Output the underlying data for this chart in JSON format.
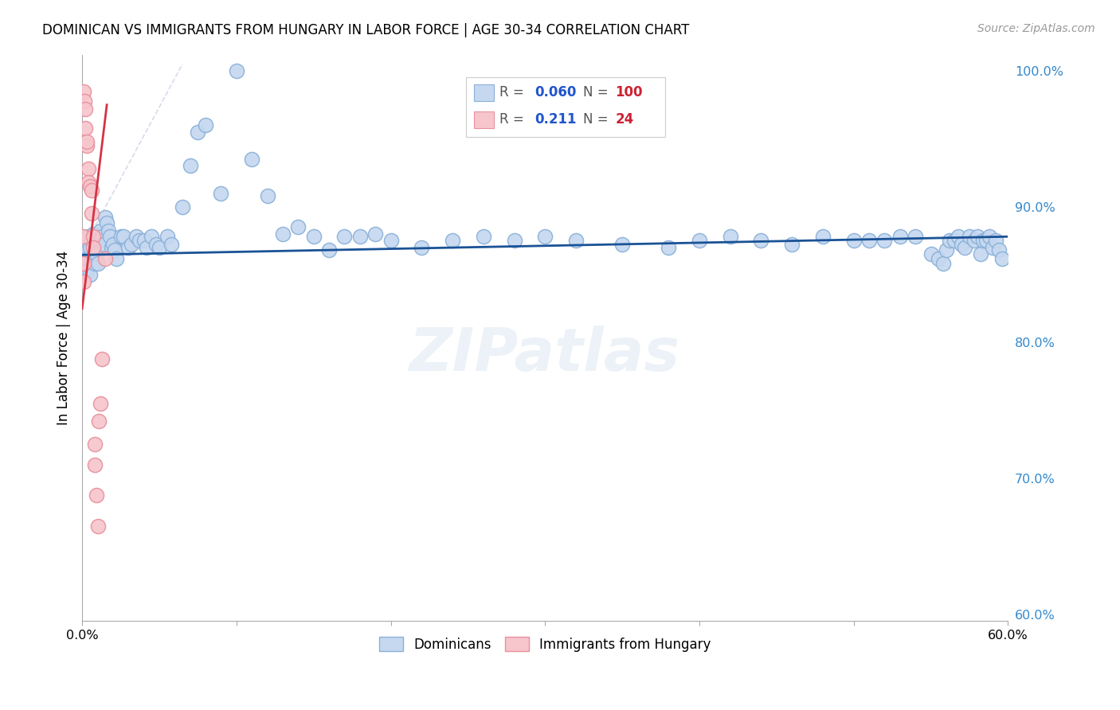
{
  "title": "DOMINICAN VS IMMIGRANTS FROM HUNGARY IN LABOR FORCE | AGE 30-34 CORRELATION CHART",
  "source": "Source: ZipAtlas.com",
  "ylabel": "In Labor Force | Age 30-34",
  "xmin": 0.0,
  "xmax": 0.6,
  "ymin": 0.595,
  "ymax": 1.012,
  "blue_R": "0.060",
  "blue_N": "100",
  "pink_R": "0.211",
  "pink_N": "24",
  "blue_color": "#c5d8f0",
  "blue_edge": "#8ab0d8",
  "pink_color": "#f7c5cc",
  "pink_edge": "#e8909c",
  "blue_line_color": "#1a5296",
  "pink_line_color": "#d43344",
  "diag_color": "#d0d8e8",
  "grid_color": "#d8d8d8",
  "blue_x": [
    0.001,
    0.001,
    0.002,
    0.002,
    0.003,
    0.003,
    0.003,
    0.004,
    0.004,
    0.005,
    0.005,
    0.006,
    0.006,
    0.007,
    0.007,
    0.008,
    0.008,
    0.009,
    0.009,
    0.01,
    0.01,
    0.011,
    0.012,
    0.013,
    0.014,
    0.015,
    0.016,
    0.017,
    0.018,
    0.019,
    0.02,
    0.021,
    0.022,
    0.025,
    0.027,
    0.03,
    0.032,
    0.035,
    0.037,
    0.04,
    0.042,
    0.045,
    0.048,
    0.05,
    0.055,
    0.058,
    0.065,
    0.07,
    0.075,
    0.08,
    0.09,
    0.1,
    0.11,
    0.12,
    0.13,
    0.14,
    0.15,
    0.16,
    0.17,
    0.18,
    0.19,
    0.2,
    0.22,
    0.24,
    0.26,
    0.28,
    0.3,
    0.32,
    0.35,
    0.38,
    0.4,
    0.42,
    0.44,
    0.46,
    0.48,
    0.5,
    0.51,
    0.52,
    0.53,
    0.54,
    0.55,
    0.555,
    0.558,
    0.56,
    0.562,
    0.565,
    0.568,
    0.57,
    0.572,
    0.575,
    0.578,
    0.58,
    0.582,
    0.584,
    0.586,
    0.588,
    0.59,
    0.592,
    0.594,
    0.596
  ],
  "blue_y": [
    0.858,
    0.87,
    0.87,
    0.855,
    0.875,
    0.862,
    0.852,
    0.878,
    0.862,
    0.87,
    0.85,
    0.875,
    0.862,
    0.88,
    0.87,
    0.872,
    0.858,
    0.878,
    0.865,
    0.878,
    0.858,
    0.875,
    0.882,
    0.878,
    0.872,
    0.892,
    0.888,
    0.882,
    0.878,
    0.87,
    0.872,
    0.868,
    0.862,
    0.878,
    0.878,
    0.87,
    0.872,
    0.878,
    0.875,
    0.875,
    0.87,
    0.878,
    0.872,
    0.87,
    0.878,
    0.872,
    0.9,
    0.93,
    0.955,
    0.96,
    0.91,
    1.0,
    0.935,
    0.908,
    0.88,
    0.885,
    0.878,
    0.868,
    0.878,
    0.878,
    0.88,
    0.875,
    0.87,
    0.875,
    0.878,
    0.875,
    0.878,
    0.875,
    0.872,
    0.87,
    0.875,
    0.878,
    0.875,
    0.872,
    0.878,
    0.875,
    0.875,
    0.875,
    0.878,
    0.878,
    0.865,
    0.862,
    0.858,
    0.868,
    0.875,
    0.875,
    0.878,
    0.872,
    0.87,
    0.878,
    0.875,
    0.878,
    0.865,
    0.875,
    0.875,
    0.878,
    0.87,
    0.875,
    0.868,
    0.862
  ],
  "pink_x": [
    0.0005,
    0.001,
    0.001,
    0.001,
    0.0015,
    0.002,
    0.002,
    0.003,
    0.003,
    0.004,
    0.004,
    0.005,
    0.006,
    0.006,
    0.007,
    0.007,
    0.008,
    0.008,
    0.009,
    0.01,
    0.011,
    0.012,
    0.013,
    0.015
  ],
  "pink_y": [
    0.878,
    0.858,
    0.845,
    0.985,
    0.978,
    0.972,
    0.958,
    0.945,
    0.948,
    0.928,
    0.918,
    0.915,
    0.912,
    0.895,
    0.878,
    0.87,
    0.725,
    0.71,
    0.688,
    0.665,
    0.742,
    0.755,
    0.788,
    0.862
  ],
  "blue_trend_x0": 0.0,
  "blue_trend_y0": 0.8645,
  "blue_trend_x1": 0.6,
  "blue_trend_y1": 0.878,
  "pink_trend_x0": 0.0,
  "pink_trend_y0": 0.825,
  "pink_trend_x1": 0.016,
  "pink_trend_y1": 0.975
}
